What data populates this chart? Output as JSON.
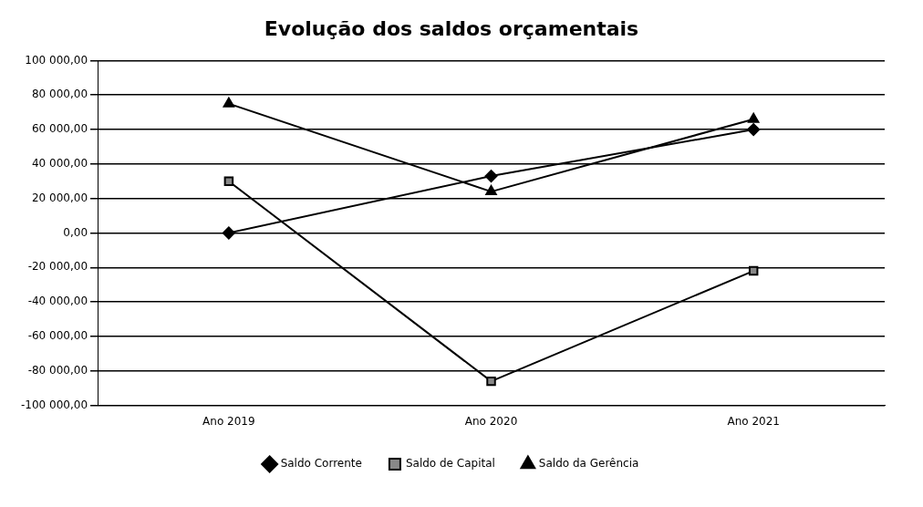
{
  "chart_data": {
    "type": "line",
    "title": "Evolução dos saldos orçamentais",
    "categories": [
      "Ano 2019",
      "Ano 2020",
      "Ano 2021"
    ],
    "series": [
      {
        "name": "Saldo Corrente",
        "color": "#000000",
        "marker": "diamond",
        "values": [
          0,
          33000,
          60000
        ]
      },
      {
        "name": "Saldo de Capital",
        "color": "#000000",
        "marker": "square",
        "values": [
          30000,
          -86000,
          -22000
        ]
      },
      {
        "name": "Saldo da Gerência",
        "color": "#000000",
        "marker": "triangle",
        "values": [
          75000,
          24000,
          66000
        ]
      }
    ],
    "ylim": [
      -100000,
      100000
    ],
    "yticks": [
      {
        "value": -100000,
        "label": "-100 000,00"
      },
      {
        "value": -80000,
        "label": "-80 000,00"
      },
      {
        "value": -60000,
        "label": "-60 000,00"
      },
      {
        "value": -40000,
        "label": "-40 000,00"
      },
      {
        "value": -20000,
        "label": "-20 000,00"
      },
      {
        "value": 0,
        "label": "0,00"
      },
      {
        "value": 20000,
        "label": "20 000,00"
      },
      {
        "value": 40000,
        "label": "40 000,00"
      },
      {
        "value": 60000,
        "label": "60 000,00"
      },
      {
        "value": 80000,
        "label": "80 000,00"
      },
      {
        "value": 100000,
        "label": "100 000,00"
      }
    ],
    "grid": "y",
    "legend": "bottom"
  }
}
